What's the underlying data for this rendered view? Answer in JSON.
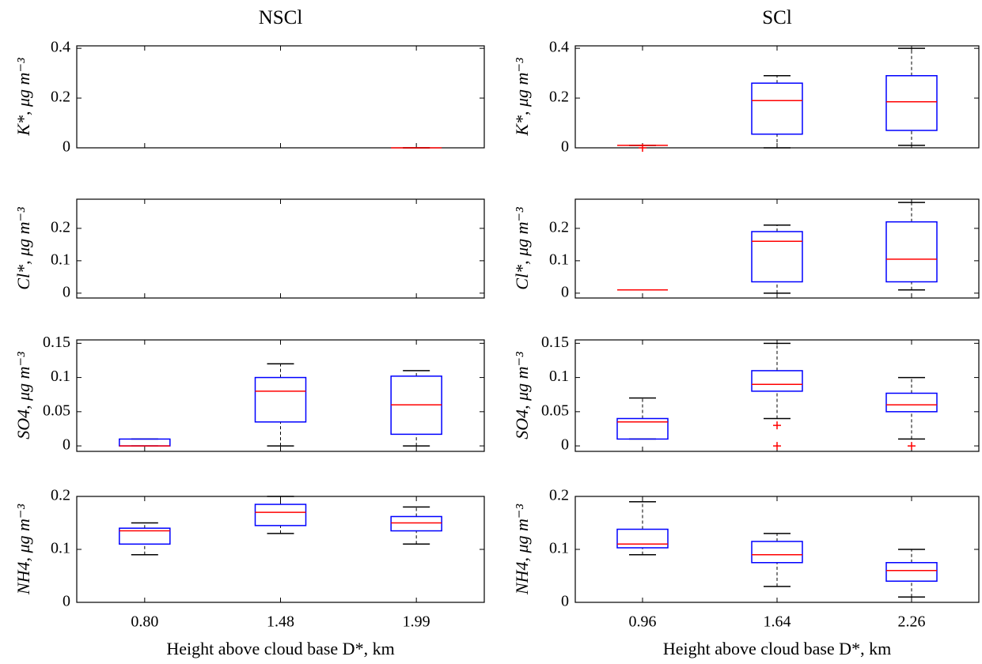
{
  "chart_data": [
    {
      "type": "box",
      "title": "NSCl",
      "ylabel": "K*, μg m⁻³",
      "ylim": [
        0,
        0.41
      ],
      "yticks": [
        0,
        0.2,
        0.4
      ],
      "colors": {
        "box": "#0000ff",
        "median": "#ff0000",
        "whisker": "#000000",
        "flier": "#ff0000"
      },
      "boxes": [
        null,
        null,
        {
          "whislo": 0,
          "q1": 0,
          "med": 0,
          "q3": 0,
          "whishi": 0,
          "fliers": []
        }
      ]
    },
    {
      "type": "box",
      "title": "SCl",
      "ylabel": "K*, μg m⁻³",
      "ylim": [
        0,
        0.41
      ],
      "yticks": [
        0,
        0.2,
        0.4
      ],
      "colors": {
        "box": "#0000ff",
        "median": "#ff0000",
        "whisker": "#000000",
        "flier": "#ff0000"
      },
      "boxes": [
        {
          "whislo": 0.01,
          "q1": 0.01,
          "med": 0.01,
          "q3": 0.01,
          "whishi": 0.01,
          "fliers": [
            0
          ]
        },
        {
          "whislo": 0,
          "q1": 0.055,
          "med": 0.19,
          "q3": 0.26,
          "whishi": 0.29,
          "fliers": []
        },
        {
          "whislo": 0.01,
          "q1": 0.07,
          "med": 0.185,
          "q3": 0.29,
          "whishi": 0.4,
          "fliers": []
        }
      ]
    },
    {
      "type": "box",
      "ylabel": "Cl*, μg m⁻³",
      "ylim": [
        -0.015,
        0.29
      ],
      "yticks": [
        0,
        0.1,
        0.2
      ],
      "colors": {
        "box": "#0000ff",
        "median": "#ff0000",
        "whisker": "#000000",
        "flier": "#ff0000"
      },
      "boxes": [
        null,
        null,
        null
      ]
    },
    {
      "type": "box",
      "ylabel": "Cl*, μg m⁻³",
      "ylim": [
        -0.015,
        0.29
      ],
      "yticks": [
        0,
        0.1,
        0.2
      ],
      "colors": {
        "box": "#0000ff",
        "median": "#ff0000",
        "whisker": "#000000",
        "flier": "#ff0000"
      },
      "boxes": [
        {
          "whislo": 0.01,
          "q1": 0.01,
          "med": 0.01,
          "q3": 0.01,
          "whishi": 0.01,
          "fliers": []
        },
        {
          "whislo": 0,
          "q1": 0.035,
          "med": 0.16,
          "q3": 0.19,
          "whishi": 0.21,
          "fliers": []
        },
        {
          "whislo": 0.01,
          "q1": 0.035,
          "med": 0.105,
          "q3": 0.22,
          "whishi": 0.28,
          "fliers": []
        }
      ]
    },
    {
      "type": "box",
      "ylabel": "SO4, μg m⁻³",
      "ylim": [
        -0.008,
        0.155
      ],
      "yticks": [
        0,
        0.05,
        0.1,
        0.15
      ],
      "colors": {
        "box": "#0000ff",
        "median": "#ff0000",
        "whisker": "#000000",
        "flier": "#ff0000"
      },
      "boxes": [
        {
          "whislo": 0,
          "q1": 0,
          "med": 0,
          "q3": 0.01,
          "whishi": 0.01,
          "fliers": []
        },
        {
          "whislo": 0,
          "q1": 0.035,
          "med": 0.08,
          "q3": 0.1,
          "whishi": 0.12,
          "fliers": []
        },
        {
          "whislo": 0,
          "q1": 0.017,
          "med": 0.06,
          "q3": 0.102,
          "whishi": 0.11,
          "fliers": []
        }
      ]
    },
    {
      "type": "box",
      "ylabel": "SO4, μg m⁻³",
      "ylim": [
        -0.008,
        0.155
      ],
      "yticks": [
        0,
        0.05,
        0.1,
        0.15
      ],
      "colors": {
        "box": "#0000ff",
        "median": "#ff0000",
        "whisker": "#000000",
        "flier": "#ff0000"
      },
      "boxes": [
        {
          "whislo": 0.01,
          "q1": 0.01,
          "med": 0.035,
          "q3": 0.04,
          "whishi": 0.07,
          "fliers": []
        },
        {
          "whislo": 0.04,
          "q1": 0.08,
          "med": 0.09,
          "q3": 0.11,
          "whishi": 0.15,
          "fliers": [
            0.03,
            0
          ]
        },
        {
          "whislo": 0.01,
          "q1": 0.05,
          "med": 0.06,
          "q3": 0.077,
          "whishi": 0.1,
          "fliers": [
            0
          ]
        }
      ]
    },
    {
      "type": "box",
      "ylabel": "NH4, μg m⁻³",
      "xlabel": "Height above cloud base D*, km",
      "categories": [
        "0.80",
        "1.48",
        "1.99"
      ],
      "ylim": [
        0,
        0.2
      ],
      "yticks": [
        0,
        0.1,
        0.2
      ],
      "colors": {
        "box": "#0000ff",
        "median": "#ff0000",
        "whisker": "#000000",
        "flier": "#ff0000"
      },
      "boxes": [
        {
          "whislo": 0.09,
          "q1": 0.11,
          "med": 0.135,
          "q3": 0.14,
          "whishi": 0.15,
          "fliers": []
        },
        {
          "whislo": 0.13,
          "q1": 0.145,
          "med": 0.17,
          "q3": 0.185,
          "whishi": 0.2,
          "fliers": []
        },
        {
          "whislo": 0.11,
          "q1": 0.135,
          "med": 0.15,
          "q3": 0.162,
          "whishi": 0.18,
          "fliers": []
        }
      ]
    },
    {
      "type": "box",
      "ylabel": "NH4, μg m⁻³",
      "xlabel": "Height above cloud base D*, km",
      "categories": [
        "0.96",
        "1.64",
        "2.26"
      ],
      "ylim": [
        0,
        0.2
      ],
      "yticks": [
        0,
        0.1,
        0.2
      ],
      "colors": {
        "box": "#0000ff",
        "median": "#ff0000",
        "whisker": "#000000",
        "flier": "#ff0000"
      },
      "boxes": [
        {
          "whislo": 0.09,
          "q1": 0.103,
          "med": 0.11,
          "q3": 0.138,
          "whishi": 0.19,
          "fliers": []
        },
        {
          "whislo": 0.03,
          "q1": 0.075,
          "med": 0.09,
          "q3": 0.115,
          "whishi": 0.13,
          "fliers": []
        },
        {
          "whislo": 0.01,
          "q1": 0.04,
          "med": 0.06,
          "q3": 0.075,
          "whishi": 0.1,
          "fliers": []
        }
      ]
    }
  ]
}
